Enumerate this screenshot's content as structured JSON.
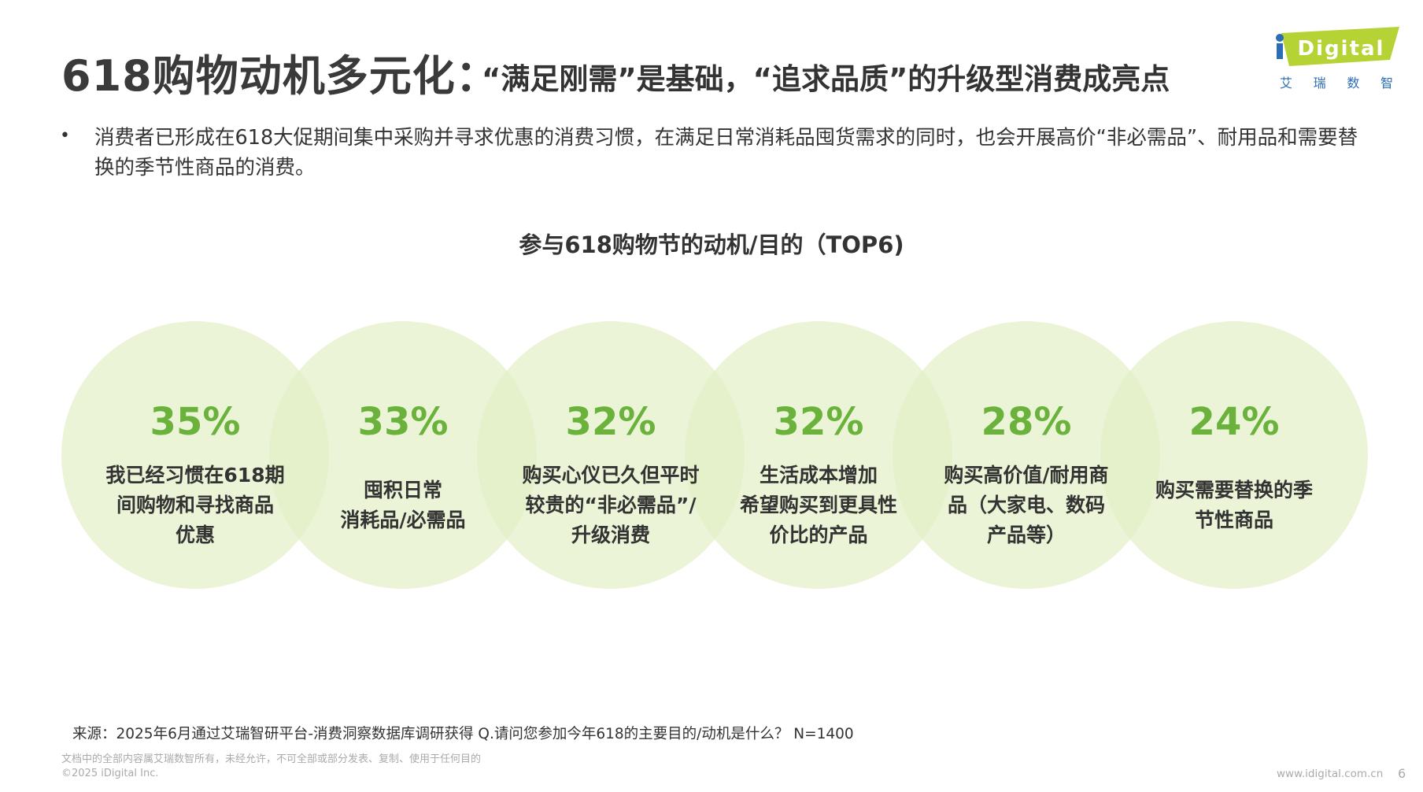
{
  "header": {
    "title_main": "618购物动机多元化：",
    "title_sub": "“满足刚需”是基础，“追求品质”的升级型消费成亮点"
  },
  "logo": {
    "text": "iDigital",
    "cn": [
      "艾",
      "瑞",
      "数",
      "智"
    ]
  },
  "bullet": {
    "symbol": "•",
    "text": "消费者已形成在618大促期间集中采购并寻求优惠的消费习惯，在满足日常消耗品囤货需求的同时，也会开展高价“非必需品”、耐用品和需要替换的季节性商品的消费。"
  },
  "chart_data": {
    "type": "bubble",
    "title": "参与618购物节的动机/目的（TOP6)",
    "unit": "%",
    "items": [
      {
        "value": 35,
        "value_label": "35%",
        "label_lines": [
          "我已经习惯在618期",
          "间购物和寻找商品",
          "优惠"
        ]
      },
      {
        "value": 33,
        "value_label": "33%",
        "label_lines": [
          "囤积日常",
          "消耗品/必需品"
        ]
      },
      {
        "value": 32,
        "value_label": "32%",
        "label_lines": [
          "购买心仪已久但平时",
          "较贵的“非必需品”/",
          "升级消费"
        ]
      },
      {
        "value": 32,
        "value_label": "32%",
        "label_lines": [
          "生活成本增加",
          "希望购买到更具性",
          "价比的产品"
        ]
      },
      {
        "value": 28,
        "value_label": "28%",
        "label_lines": [
          "购买高价值/耐用商",
          "品（大家电、数码",
          "产品等）"
        ]
      },
      {
        "value": 24,
        "value_label": "24%",
        "label_lines": [
          "购买需要替换的季",
          "节性商品"
        ]
      }
    ],
    "colors": {
      "circle_fill": "#e3efc4",
      "value_color": "#6ab23c",
      "label_color": "#333333"
    }
  },
  "footer": {
    "source": "来源：2025年6月通过艾瑞智研平台-消费洞察数据库调研获得 Q.请问您参加今年618的主要目的/动机是什么？ N=1400",
    "copyright_line1": "文档中的全部内容属艾瑞数智所有，未经允许，不可全部或部分发表、复制、使用于任何目的",
    "copyright_line2": "©2025 iDigital Inc.",
    "website": "www.idigital.com.cn",
    "page_number": "6"
  }
}
